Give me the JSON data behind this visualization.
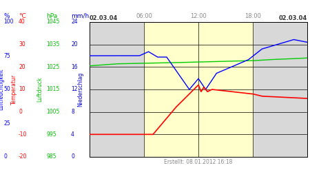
{
  "title_left": "02.03.04",
  "title_right": "02.03.04",
  "time_labels": [
    "06:00",
    "12:00",
    "18:00"
  ],
  "time_ticks": [
    6,
    12,
    18
  ],
  "unit_labels": [
    "%",
    "°C",
    "hPa",
    "mm/h"
  ],
  "ylabel1": "Luftfeuchtigkeit",
  "ylabel2": "Temperatur",
  "ylabel3": "Luftdruck",
  "ylabel4": "Niederschlag",
  "footer": "Erstellt: 08.01.2012 16:18",
  "color_humidity": "#0000ff",
  "color_temp": "#ff0000",
  "color_pressure": "#00cc00",
  "axis_label_colors": [
    "#0000ff",
    "#ff0000",
    "#00bb00",
    "#0000cc"
  ],
  "pct_vals": [
    100,
    75,
    50,
    25,
    0
  ],
  "temp_vals": [
    40,
    30,
    20,
    10,
    0,
    -10,
    -20
  ],
  "hpa_vals": [
    1045,
    1035,
    1025,
    1015,
    1005,
    995,
    985
  ],
  "mmh_vals": [
    24,
    20,
    16,
    12,
    8,
    4,
    0
  ],
  "ylim_pct": [
    0,
    100
  ],
  "xlim": [
    0,
    24
  ],
  "yellow_start": 6,
  "yellow_end": 18,
  "gray_bg": "#d8d8d8",
  "yellow_bg": "#ffffcc",
  "fig_w": 4.5,
  "fig_h": 2.5,
  "dpi": 100
}
